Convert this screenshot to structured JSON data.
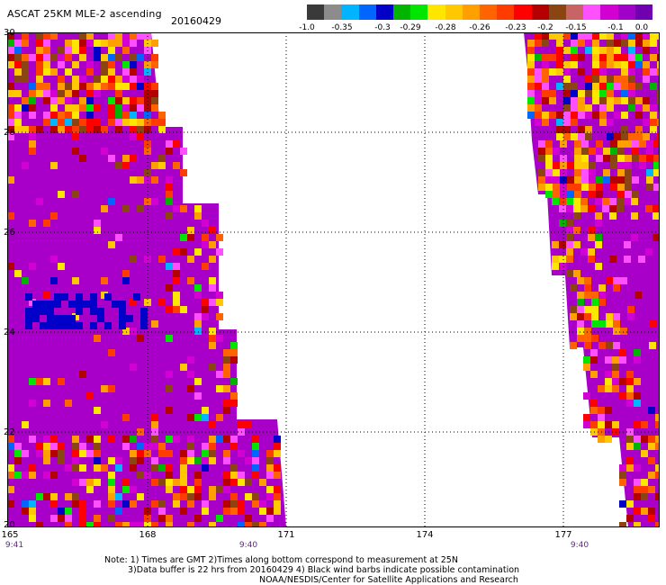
{
  "header": {
    "title": "ASCAT 25KM MLE-2 ascending",
    "date": "20160429"
  },
  "colorbar": {
    "colors": [
      "#3a3a3a",
      "#8c8c8c",
      "#00b4ff",
      "#0066ff",
      "#0000c8",
      "#00b400",
      "#00e600",
      "#ffe600",
      "#ffc800",
      "#ffa000",
      "#ff6400",
      "#ff3c00",
      "#ff0000",
      "#b40000",
      "#8b4513",
      "#c86464",
      "#ff50ff",
      "#d200d2",
      "#a000c8",
      "#7000b0"
    ],
    "ticks": [
      "-1.0",
      "-0.35",
      "-0.3",
      "-0.29",
      "-0.28",
      "-0.26",
      "-0.23",
      "-0.2",
      "-0.15",
      "-0.1",
      "0.0"
    ]
  },
  "map": {
    "lat_labels": [
      "30",
      "28",
      "26",
      "24",
      "22",
      "20"
    ],
    "lon_labels": [
      "165",
      "168",
      "171",
      "174",
      "177"
    ],
    "time_labels": [
      "9:41",
      "9:40",
      "9:40"
    ],
    "background_color": "#a800c8"
  },
  "notes": {
    "line1": "Note: 1) Times are GMT 2)Times along bottom correspond to measurement at 25N",
    "line2": "3)Data buffer is 22 hrs from 20160429 4) Black wind barbs indicate possible contamination",
    "line3": "NOAA/NESDIS/Center for Satellite Applications and Research"
  }
}
